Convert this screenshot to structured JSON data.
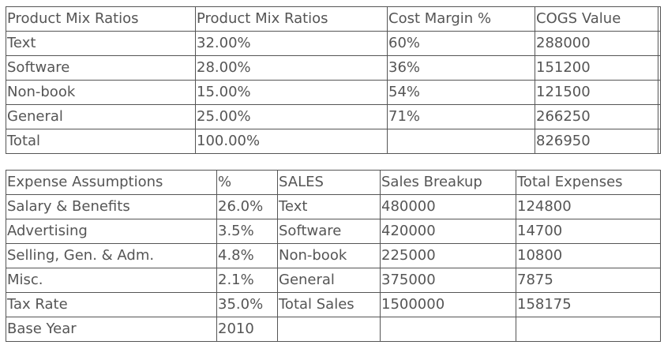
{
  "product_table": {
    "headers": [
      "Product Mix Ratios",
      "Product Mix Ratios",
      "Cost Margin %",
      "COGS Value"
    ],
    "rows": [
      [
        "Text",
        "32.00%",
        "60%",
        "288000"
      ],
      [
        "Software",
        "28.00%",
        "36%",
        "151200"
      ],
      [
        "Non-book",
        "15.00%",
        "54%",
        "121500"
      ],
      [
        "General",
        "25.00%",
        "71%",
        "266250"
      ],
      [
        "Total",
        "100.00%",
        "",
        "826950"
      ]
    ]
  },
  "expense_table": {
    "headers": [
      "Expense Assumptions",
      "%",
      "SALES",
      "Sales Breakup",
      "Total Expenses"
    ],
    "rows": [
      [
        "Salary & Benefits",
        "26.0%",
        "Text",
        "480000",
        "124800"
      ],
      [
        "Advertising",
        "3.5%",
        "Software",
        "420000",
        "14700"
      ],
      [
        "Selling, Gen. & Adm.",
        "4.8%",
        "Non-book",
        "225000",
        "10800"
      ],
      [
        "Misc.",
        "2.1%",
        "General",
        "375000",
        "7875"
      ],
      [
        "Tax Rate",
        "35.0%",
        "Total Sales",
        "1500000",
        "158175"
      ],
      [
        "Base Year",
        "2010",
        "",
        "",
        ""
      ]
    ]
  }
}
